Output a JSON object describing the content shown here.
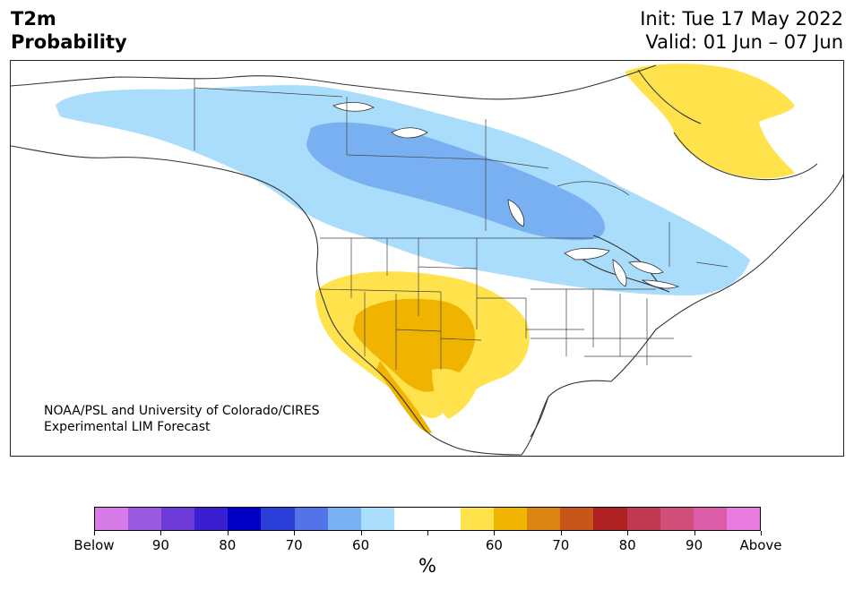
{
  "title": {
    "line1": "T2m",
    "line2": "Probability"
  },
  "header_right": {
    "init": "Init: Tue 17 May 2022",
    "valid": "Valid: 01 Jun – 07 Jun"
  },
  "credit": {
    "line1": "NOAA/PSL and University of Colorado/CIRES",
    "line2": "Experimental LIM Forecast"
  },
  "colorbar": {
    "colors": [
      "#d67ae8",
      "#9b58e0",
      "#6d3cd8",
      "#3a1fd0",
      "#0000c8",
      "#2a3fd8",
      "#5274e8",
      "#78b0f2",
      "#aadcfc",
      "#ffffff",
      "#ffffff",
      "#ffe24c",
      "#f0b400",
      "#dc8410",
      "#c8561a",
      "#b02222",
      "#c03a52",
      "#d0507a",
      "#dc5ca8",
      "#e87ae0"
    ],
    "tick_labels": [
      "Below",
      "90",
      "80",
      "70",
      "60",
      "",
      "60",
      "70",
      "80",
      "90",
      "Above"
    ],
    "unit": "%"
  },
  "map": {
    "legend_colors": {
      "below_light": "#aadcfc",
      "below_mid": "#78b0f2",
      "above_light": "#ffe24c",
      "above_mid": "#f0b400"
    }
  }
}
